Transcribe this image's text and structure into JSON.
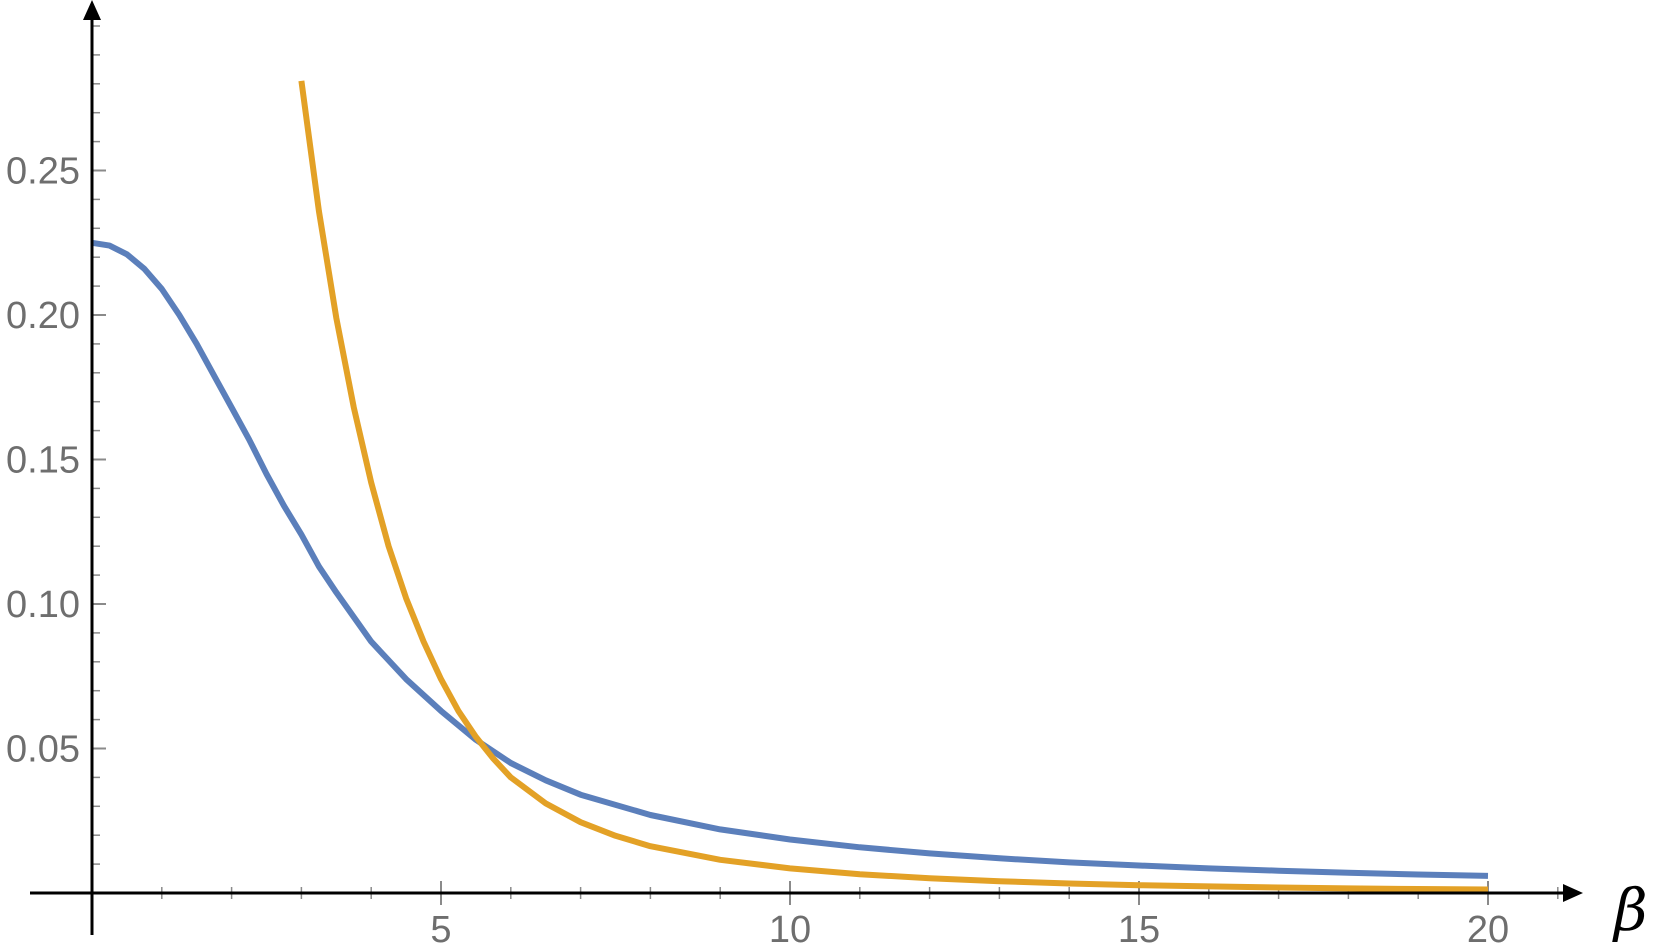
{
  "chart_data": {
    "type": "line",
    "title": "",
    "xlabel": "β",
    "ylabel": "",
    "xlim": [
      0,
      21.2
    ],
    "ylim": [
      0,
      0.3
    ],
    "grid": false,
    "legend": "none",
    "x_ticks": [
      {
        "value": 5,
        "label": "5"
      },
      {
        "value": 10,
        "label": "10"
      },
      {
        "value": 15,
        "label": "15"
      },
      {
        "value": 20,
        "label": "20"
      }
    ],
    "y_ticks": [
      {
        "value": 0.05,
        "label": "0.05"
      },
      {
        "value": 0.1,
        "label": "0.10"
      },
      {
        "value": 0.15,
        "label": "0.15"
      },
      {
        "value": 0.2,
        "label": "0.20"
      },
      {
        "value": 0.25,
        "label": "0.25"
      }
    ],
    "x_minor_step": 1,
    "y_minor_step": 0.01,
    "series": [
      {
        "color": "#5b7fbb",
        "points": [
          [
            0.0,
            0.225
          ],
          [
            0.25,
            0.224
          ],
          [
            0.5,
            0.221
          ],
          [
            0.75,
            0.216
          ],
          [
            1.0,
            0.209
          ],
          [
            1.25,
            0.2
          ],
          [
            1.5,
            0.19
          ],
          [
            1.75,
            0.179
          ],
          [
            2.0,
            0.168
          ],
          [
            2.25,
            0.157
          ],
          [
            2.5,
            0.145
          ],
          [
            2.75,
            0.134
          ],
          [
            3.0,
            0.124
          ],
          [
            3.25,
            0.113
          ],
          [
            3.5,
            0.104
          ],
          [
            4.0,
            0.087
          ],
          [
            4.5,
            0.074
          ],
          [
            5.0,
            0.063
          ],
          [
            5.5,
            0.053
          ],
          [
            6.0,
            0.045
          ],
          [
            6.5,
            0.039
          ],
          [
            7.0,
            0.034
          ],
          [
            8.0,
            0.027
          ],
          [
            9.0,
            0.022
          ],
          [
            10.0,
            0.0185
          ],
          [
            11.0,
            0.0158
          ],
          [
            12.0,
            0.0137
          ],
          [
            13.0,
            0.012
          ],
          [
            14.0,
            0.0106
          ],
          [
            15.0,
            0.0095
          ],
          [
            16.0,
            0.0085
          ],
          [
            17.0,
            0.0077
          ],
          [
            18.0,
            0.007
          ],
          [
            19.0,
            0.0064
          ],
          [
            20.0,
            0.0059
          ]
        ]
      },
      {
        "color": "#e3a126",
        "points": [
          [
            3.0,
            0.281
          ],
          [
            3.25,
            0.236
          ],
          [
            3.5,
            0.199
          ],
          [
            3.75,
            0.168
          ],
          [
            4.0,
            0.142
          ],
          [
            4.25,
            0.12
          ],
          [
            4.5,
            0.102
          ],
          [
            4.75,
            0.087
          ],
          [
            5.0,
            0.074
          ],
          [
            5.25,
            0.063
          ],
          [
            5.5,
            0.054
          ],
          [
            5.75,
            0.0465
          ],
          [
            6.0,
            0.04
          ],
          [
            6.5,
            0.031
          ],
          [
            7.0,
            0.0245
          ],
          [
            7.5,
            0.0198
          ],
          [
            8.0,
            0.0162
          ],
          [
            9.0,
            0.0115
          ],
          [
            10.0,
            0.0085
          ],
          [
            11.0,
            0.0065
          ],
          [
            12.0,
            0.0051
          ],
          [
            13.0,
            0.0041
          ],
          [
            14.0,
            0.0033
          ],
          [
            15.0,
            0.0027
          ],
          [
            16.0,
            0.0023
          ],
          [
            17.0,
            0.0019
          ],
          [
            18.0,
            0.0016
          ],
          [
            19.0,
            0.0014
          ],
          [
            20.0,
            0.0012
          ]
        ]
      }
    ]
  }
}
